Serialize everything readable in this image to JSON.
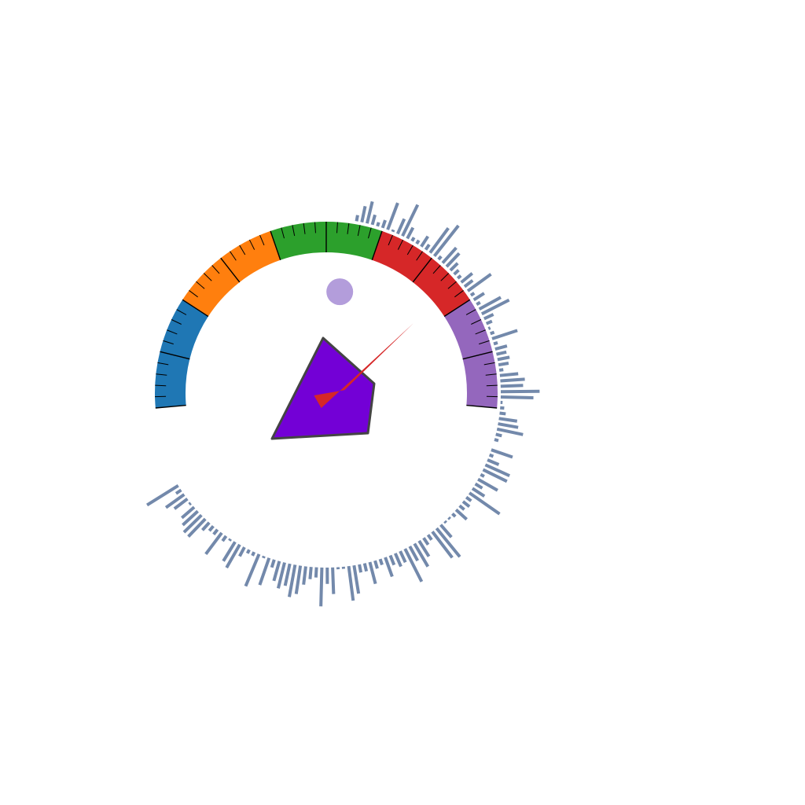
{
  "chart_data": {
    "type": "gauge",
    "title": "",
    "scale": {
      "min": 0,
      "max": 100,
      "major_step": 10,
      "minor_step": 2
    },
    "bands": [
      {
        "from": 0,
        "to": 20,
        "color": "#1f77b4"
      },
      {
        "from": 20,
        "to": 40,
        "color": "#ff7f0e"
      },
      {
        "from": 40,
        "to": 60,
        "color": "#2ca02c"
      },
      {
        "from": 60,
        "to": 80,
        "color": "#d62728"
      },
      {
        "from": 80,
        "to": 100,
        "color": "#9467bd"
      }
    ],
    "needle": {
      "value": 77,
      "color": "#d62728"
    },
    "marker": {
      "value": 54,
      "color": "#b39ddb"
    },
    "center_polygon": {
      "color": "#7300d6",
      "stroke": "#444444"
    },
    "radial_bars": {
      "color": "#7389ab",
      "values": [
        3,
        8,
        11,
        5,
        2,
        4,
        14,
        1,
        8,
        17,
        6,
        2,
        2,
        6,
        3,
        15,
        19,
        2,
        10,
        9,
        5,
        3,
        2,
        7,
        5,
        14,
        2,
        6,
        2,
        12,
        15,
        5,
        3,
        1,
        2,
        13,
        2,
        6,
        5,
        6,
        5,
        2,
        9,
        12,
        11,
        19,
        16,
        1,
        2,
        3,
        9,
        10,
        13,
        3,
        2,
        0,
        11,
        2,
        6,
        13,
        13,
        2,
        11,
        4,
        7,
        18,
        3,
        4,
        3,
        7,
        2,
        1,
        1,
        8,
        18,
        16,
        3,
        4,
        9,
        13,
        8,
        18,
        6,
        7,
        5,
        10,
        3,
        4,
        11,
        4,
        4,
        14,
        17,
        1,
        1,
        13,
        8,
        19,
        5,
        6,
        9,
        14,
        16,
        11,
        13,
        10,
        4,
        14,
        1,
        17,
        2,
        2,
        5,
        13,
        11,
        1,
        3,
        13,
        3,
        3,
        5,
        12,
        12,
        10,
        8,
        1,
        8,
        11,
        3,
        18
      ]
    }
  }
}
